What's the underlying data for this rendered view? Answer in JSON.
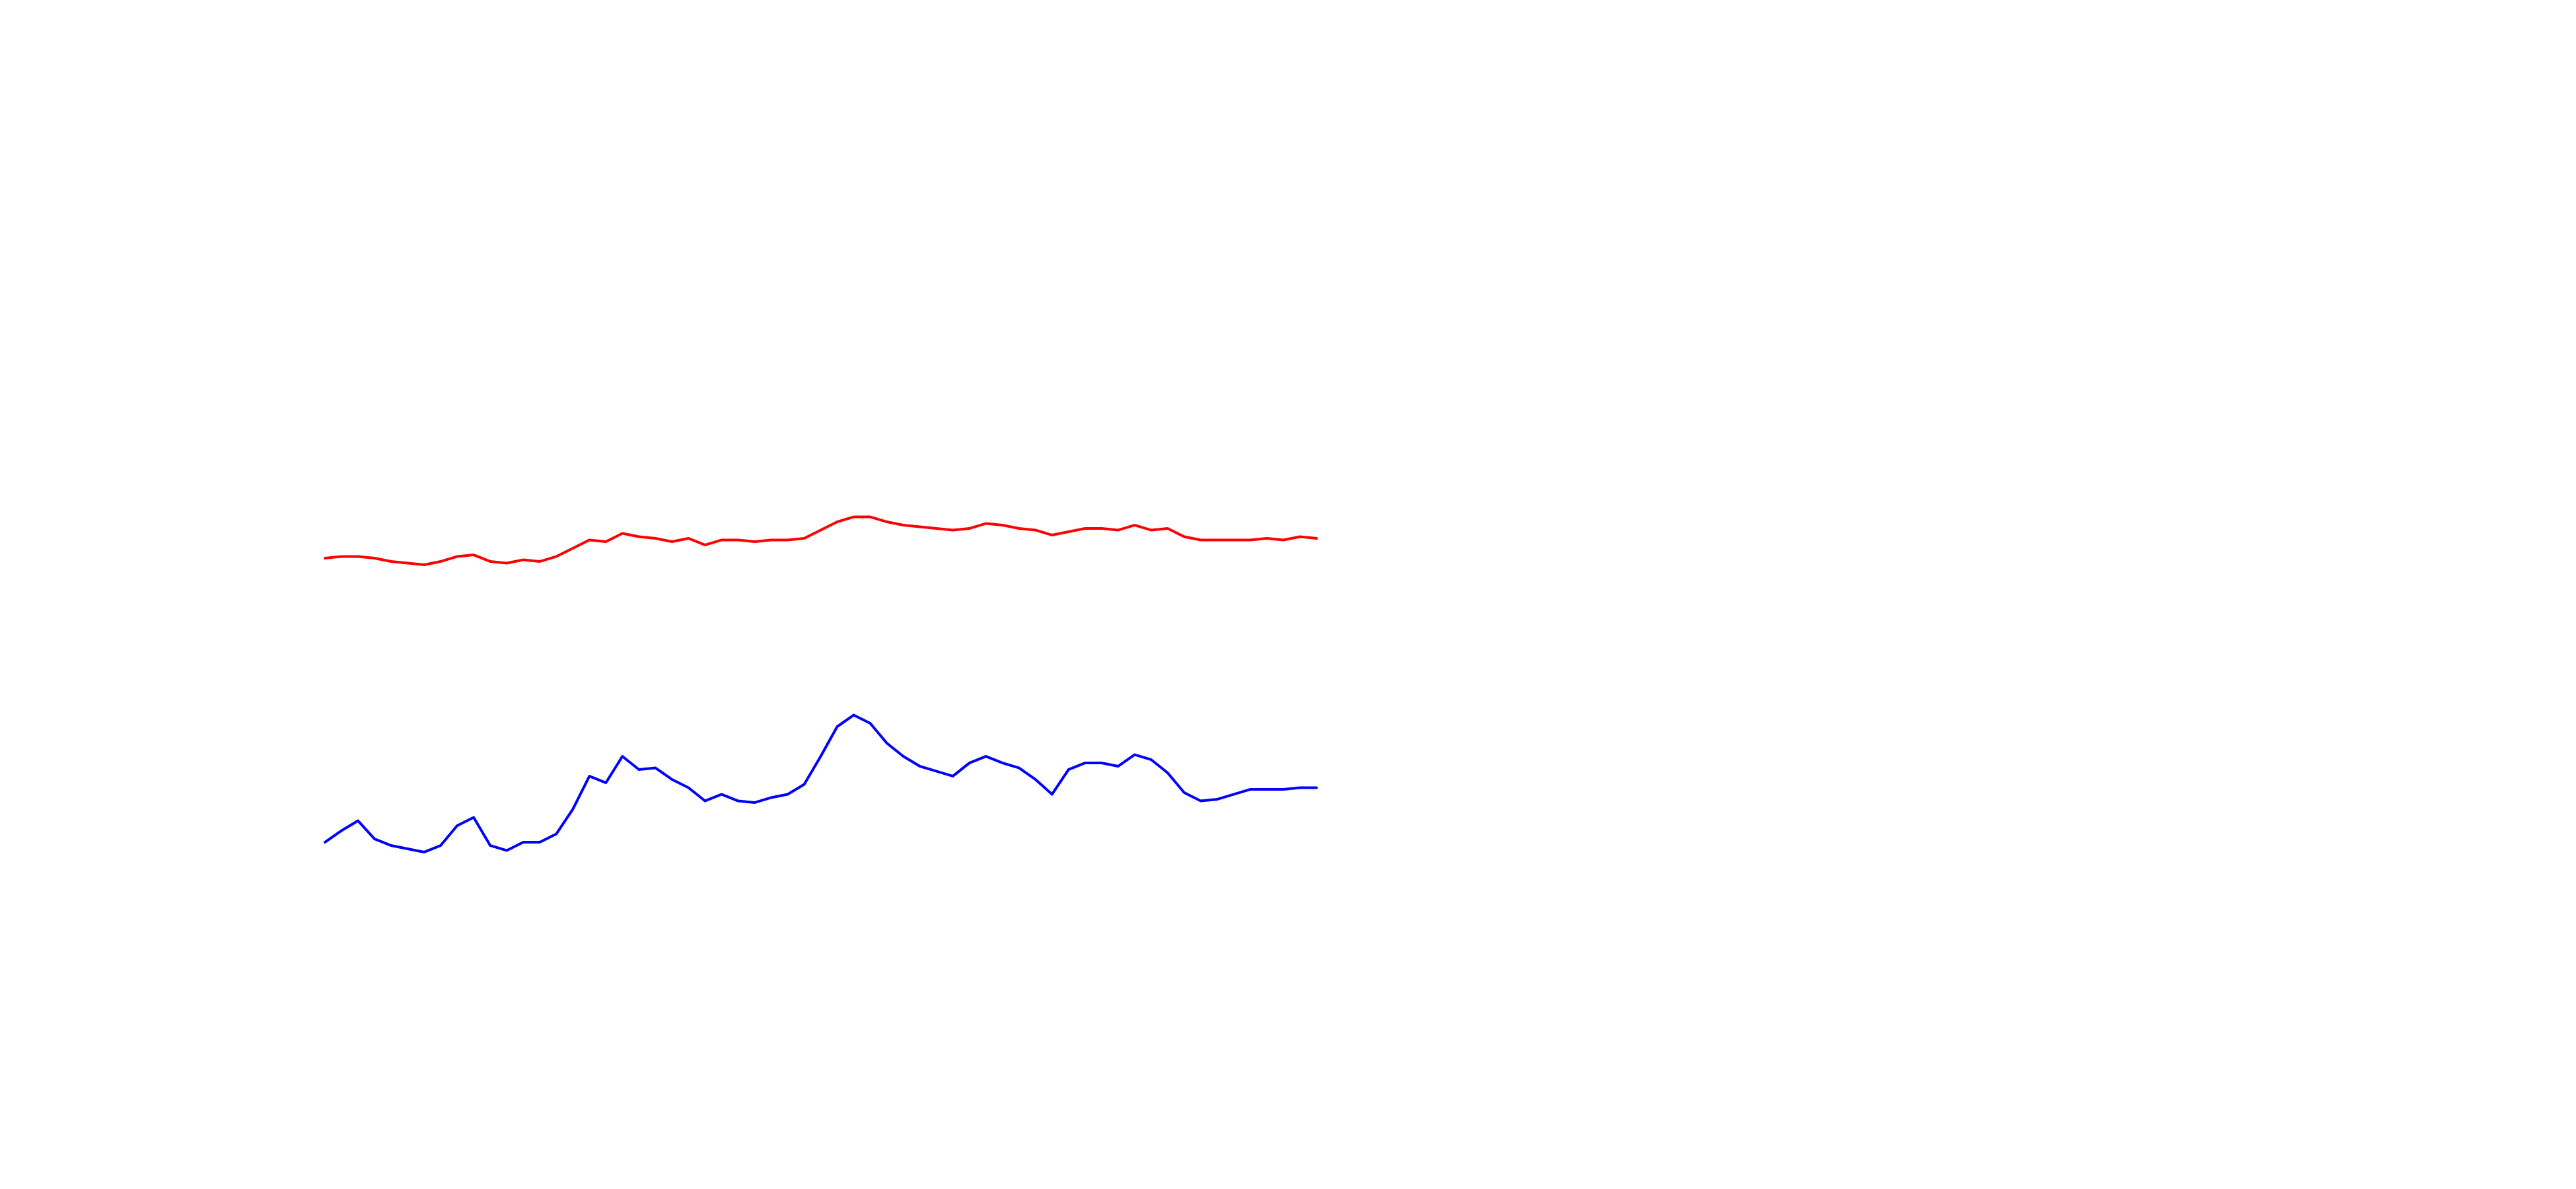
{
  "chart_data": {
    "type": "line",
    "ylim": [
      0,
      720
    ],
    "series": [
      {
        "color": "#ff0000",
        "values": [
          382,
          383,
          383,
          382,
          380,
          379,
          378,
          380,
          383,
          384,
          380,
          379,
          381,
          380,
          383,
          388,
          393,
          392,
          397,
          395,
          394,
          392,
          394,
          390,
          393,
          393,
          392,
          393,
          393,
          394,
          399,
          404,
          407,
          407,
          404,
          402,
          401,
          400,
          399,
          400,
          403,
          402,
          400,
          399,
          396,
          398,
          400,
          400,
          399,
          402,
          399,
          400,
          395,
          393,
          393,
          393,
          393,
          394,
          393,
          395,
          394
        ]
      },
      {
        "color": "#0000ff",
        "values": [
          210,
          217,
          223,
          212,
          208,
          206,
          204,
          208,
          220,
          225,
          208,
          205,
          210,
          210,
          215,
          230,
          250,
          246,
          262,
          254,
          255,
          248,
          243,
          235,
          239,
          235,
          234,
          237,
          239,
          245,
          262,
          280,
          287,
          282,
          270,
          262,
          256,
          253,
          250,
          258,
          262,
          258,
          255,
          248,
          239,
          254,
          258,
          258,
          256,
          263,
          260,
          252,
          240,
          235,
          236,
          239,
          242,
          242,
          242,
          243,
          243
        ]
      }
    ]
  }
}
